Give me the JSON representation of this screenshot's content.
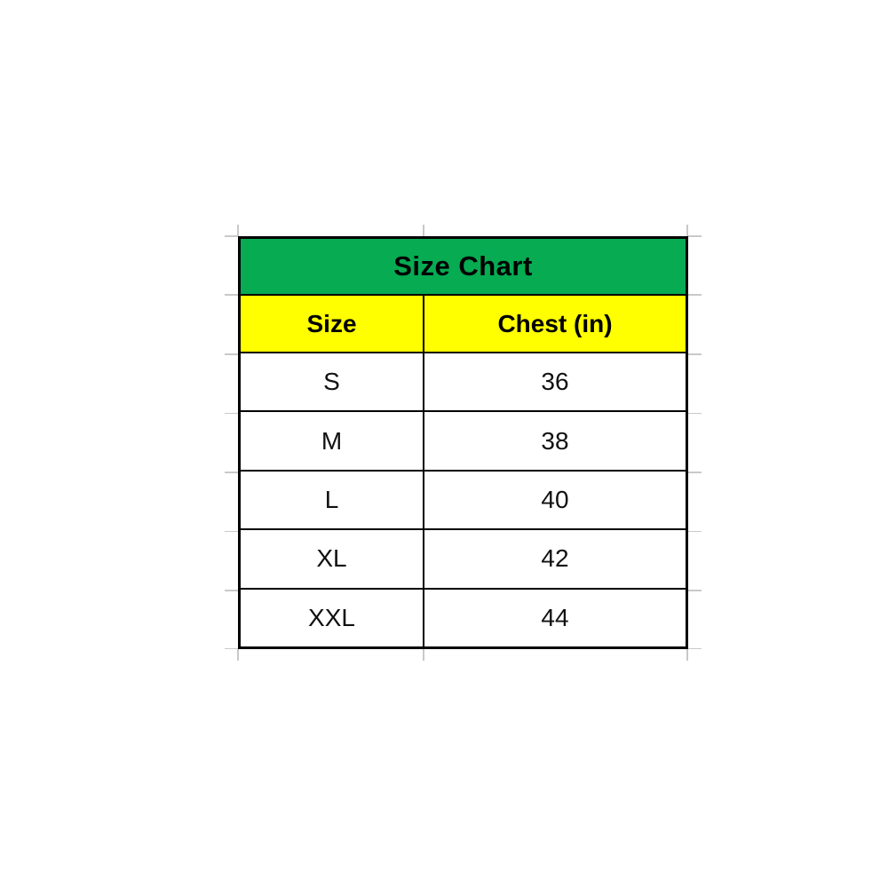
{
  "chart_data": {
    "type": "table",
    "title": "Size Chart",
    "columns": [
      "Size",
      "Chest (in)"
    ],
    "rows": [
      [
        "S",
        "36"
      ],
      [
        "M",
        "38"
      ],
      [
        "L",
        "40"
      ],
      [
        "XL",
        "42"
      ],
      [
        "XXL",
        "44"
      ]
    ]
  },
  "colors": {
    "title_bg": "#06ab52",
    "header_bg": "#ffff00",
    "border": "#000000",
    "gridline_stub": "#c9c9c9",
    "text": "#111111"
  }
}
